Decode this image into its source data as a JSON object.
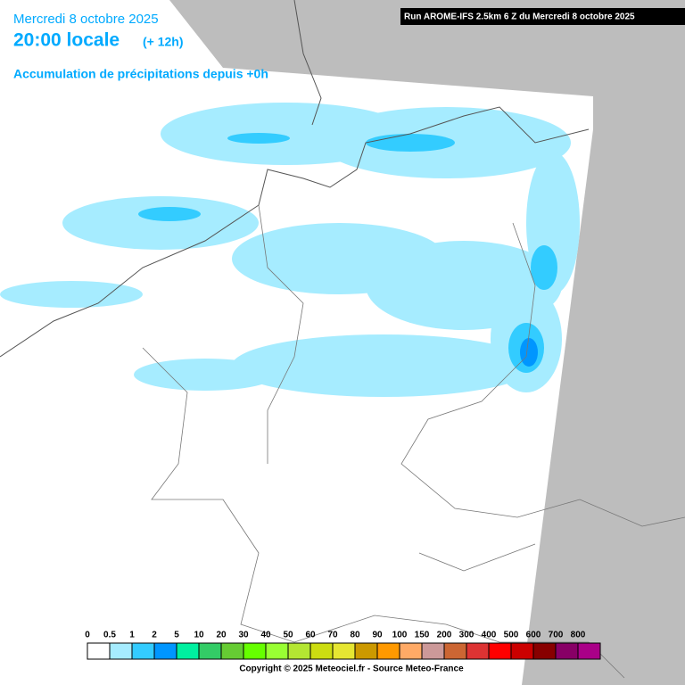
{
  "header": {
    "date": "Mercredi 8 octobre 2025",
    "time": "20:00 locale",
    "lead": "(+ 12h)",
    "product": "Accumulation de précipitations depuis +0h",
    "run": "Run AROME-IFS 2.5km 6 Z du Mercredi 8 octobre 2025"
  },
  "legend": {
    "items": [
      {
        "label": "0",
        "color": "#ffffff"
      },
      {
        "label": "0.5",
        "color": "#a6ecff"
      },
      {
        "label": "1",
        "color": "#33ccff"
      },
      {
        "label": "2",
        "color": "#0096ff"
      },
      {
        "label": "5",
        "color": "#00f0a0"
      },
      {
        "label": "10",
        "color": "#33cc66"
      },
      {
        "label": "20",
        "color": "#66cc33"
      },
      {
        "label": "30",
        "color": "#66ff00"
      },
      {
        "label": "40",
        "color": "#99ff33"
      },
      {
        "label": "50",
        "color": "#b4e632"
      },
      {
        "label": "60",
        "color": "#ccdd11"
      },
      {
        "label": "70",
        "color": "#e6e632"
      },
      {
        "label": "80",
        "color": "#cc9900"
      },
      {
        "label": "90",
        "color": "#ff9900"
      },
      {
        "label": "100",
        "color": "#ffaa66"
      },
      {
        "label": "150",
        "color": "#cc9999"
      },
      {
        "label": "200",
        "color": "#cc6633"
      },
      {
        "label": "300",
        "color": "#dd3333"
      },
      {
        "label": "400",
        "color": "#ff0000"
      },
      {
        "label": "500",
        "color": "#cc0000"
      },
      {
        "label": "600",
        "color": "#880000"
      },
      {
        "label": "700",
        "color": "#880066"
      },
      {
        "label": "800",
        "color": "#aa0088"
      }
    ]
  },
  "footer": {
    "copyright": "Copyright © 2025 Meteociel.fr - Source Meteo-France"
  }
}
